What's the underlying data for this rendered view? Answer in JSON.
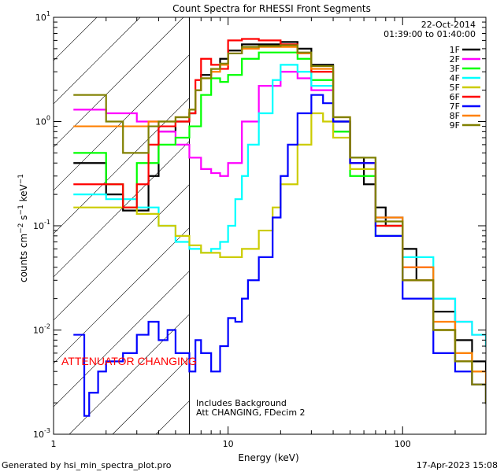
{
  "chart_data": {
    "type": "line",
    "title": "Count Spectra for RHESSI Front Segments",
    "xlabel": "Energy (keV)",
    "ylabel": "counts cm^-2 s^-1 keV^-1",
    "xscale": "log",
    "yscale": "log",
    "xlim": [
      1,
      300
    ],
    "ylim": [
      0.001,
      10
    ],
    "x_tick_labels": [
      "1",
      "10",
      "100"
    ],
    "y_tick_labels": [
      "10^-3",
      "10^-2",
      "10^-1",
      "10^0",
      "10^1"
    ],
    "date": "22-Oct-2014",
    "time_range": "01:39:00 to 01:40:00",
    "attenuator_label": "ATTENUATOR CHANGING",
    "notes": [
      "Includes Background",
      "Att CHANGING, FDecim 2"
    ],
    "attenuator_boundary_kev": 6,
    "series": [
      {
        "name": "1F",
        "color": "#000000",
        "x": [
          1.3,
          2,
          2.5,
          3,
          3.5,
          4,
          5,
          6,
          6.5,
          7,
          8,
          9,
          10,
          12,
          15,
          20,
          25,
          30,
          40,
          50,
          60,
          70,
          80,
          100,
          120,
          150,
          200,
          250,
          300
        ],
        "y": [
          0.4,
          0.2,
          0.14,
          0.14,
          0.3,
          0.8,
          1.0,
          1.2,
          2.0,
          2.8,
          3.2,
          4.0,
          4.8,
          5.5,
          5.5,
          5.8,
          5.0,
          3.5,
          1.0,
          0.45,
          0.25,
          0.15,
          0.1,
          0.06,
          0.03,
          0.015,
          0.008,
          0.005,
          0.004
        ]
      },
      {
        "name": "2F",
        "color": "#ff00ff",
        "x": [
          1.3,
          2,
          3,
          4,
          5,
          6,
          7,
          8,
          9,
          10,
          12,
          15,
          20,
          25,
          30,
          40,
          50,
          70,
          100,
          150,
          200,
          250,
          300
        ],
        "y": [
          1.3,
          1.2,
          1.0,
          0.8,
          0.6,
          0.45,
          0.35,
          0.32,
          0.3,
          0.4,
          1.0,
          2.2,
          3.0,
          2.6,
          2.0,
          0.8,
          0.4,
          0.12,
          0.04,
          0.02,
          0.012,
          0.009,
          0.007
        ]
      },
      {
        "name": "3F",
        "color": "#00ff00",
        "x": [
          1.3,
          2,
          2.5,
          3,
          4,
          5,
          6,
          7,
          8,
          9,
          10,
          12,
          15,
          20,
          25,
          30,
          40,
          50,
          70,
          100,
          150,
          200,
          250,
          300
        ],
        "y": [
          0.5,
          0.25,
          0.15,
          0.4,
          0.6,
          0.7,
          0.9,
          1.8,
          2.6,
          2.4,
          2.8,
          4.0,
          4.6,
          4.6,
          4.0,
          2.5,
          0.8,
          0.3,
          0.08,
          0.03,
          0.01,
          0.005,
          0.003,
          0.002
        ]
      },
      {
        "name": "4F",
        "color": "#00ffff",
        "x": [
          1.3,
          2,
          3,
          4,
          5,
          6,
          7,
          8,
          9,
          10,
          11,
          12,
          13,
          15,
          18,
          20,
          25,
          30,
          40,
          50,
          70,
          100,
          150,
          200,
          250,
          300
        ],
        "y": [
          0.2,
          0.18,
          0.15,
          0.1,
          0.07,
          0.06,
          0.055,
          0.06,
          0.07,
          0.1,
          0.18,
          0.3,
          0.6,
          1.2,
          2.5,
          3.5,
          3.0,
          2.2,
          1.0,
          0.45,
          0.12,
          0.05,
          0.02,
          0.012,
          0.009,
          0.007
        ]
      },
      {
        "name": "5F",
        "color": "#cccc00",
        "x": [
          1.3,
          2,
          3,
          4,
          5,
          6,
          7,
          8,
          9,
          10,
          12,
          15,
          18,
          20,
          25,
          30,
          35,
          40,
          50,
          70,
          100,
          150,
          200,
          250,
          300
        ],
        "y": [
          0.15,
          0.15,
          0.13,
          0.1,
          0.08,
          0.065,
          0.055,
          0.055,
          0.05,
          0.05,
          0.06,
          0.09,
          0.15,
          0.25,
          0.6,
          1.2,
          1.0,
          0.7,
          0.35,
          0.1,
          0.03,
          0.01,
          0.006,
          0.004,
          0.003
        ]
      },
      {
        "name": "6F",
        "color": "#ff0000",
        "x": [
          1.3,
          2,
          2.5,
          3,
          3.5,
          4,
          5,
          6,
          6.5,
          7,
          8,
          9,
          10,
          12,
          15,
          20,
          25,
          30,
          40,
          50,
          70,
          100,
          150,
          200,
          250,
          300
        ],
        "y": [
          0.25,
          0.25,
          0.15,
          0.25,
          0.6,
          0.9,
          1.0,
          1.2,
          2.5,
          4.0,
          3.5,
          3.2,
          6.0,
          6.2,
          6.0,
          5.5,
          4.5,
          3.0,
          1.0,
          0.4,
          0.1,
          0.03,
          0.01,
          0.005,
          0.003,
          0.002
        ]
      },
      {
        "name": "7F",
        "color": "#0000ff",
        "x": [
          1.3,
          1.5,
          1.6,
          1.8,
          2,
          2.5,
          3,
          3.5,
          4,
          4.5,
          5,
          6,
          6.5,
          7,
          8,
          9,
          10,
          11,
          12,
          13,
          15,
          18,
          20,
          22,
          25,
          30,
          35,
          40,
          50,
          70,
          100,
          150,
          200,
          250,
          300
        ],
        "y": [
          0.009,
          0.0015,
          0.0025,
          0.004,
          0.005,
          0.006,
          0.009,
          0.012,
          0.008,
          0.01,
          0.006,
          0.004,
          0.008,
          0.006,
          0.004,
          0.007,
          0.013,
          0.012,
          0.02,
          0.03,
          0.05,
          0.12,
          0.3,
          0.6,
          1.2,
          1.8,
          1.5,
          1.0,
          0.4,
          0.08,
          0.02,
          0.006,
          0.004,
          0.003,
          0.002
        ]
      },
      {
        "name": "8F",
        "color": "#ff8000",
        "x": [
          1.3,
          2,
          2.5,
          3,
          3.5,
          4,
          5,
          6,
          6.5,
          7,
          8,
          9,
          10,
          12,
          15,
          20,
          25,
          30,
          40,
          50,
          70,
          100,
          150,
          200,
          250,
          300
        ],
        "y": [
          0.9,
          0.9,
          0.9,
          0.9,
          1.0,
          1.0,
          1.1,
          1.3,
          2.0,
          2.6,
          3.0,
          3.5,
          4.5,
          5.0,
          5.2,
          5.2,
          4.5,
          3.2,
          1.1,
          0.45,
          0.12,
          0.04,
          0.012,
          0.006,
          0.004,
          0.003
        ]
      },
      {
        "name": "9F",
        "color": "#808000",
        "x": [
          1.3,
          2,
          2.5,
          3,
          3.5,
          4,
          5,
          6,
          6.5,
          7,
          8,
          9,
          10,
          12,
          15,
          20,
          25,
          30,
          40,
          50,
          70,
          100,
          150,
          200,
          250,
          300
        ],
        "y": [
          1.8,
          1.0,
          0.5,
          0.5,
          0.9,
          1.0,
          1.1,
          1.3,
          2.0,
          2.6,
          3.2,
          3.6,
          4.5,
          5.2,
          5.3,
          5.4,
          4.6,
          3.4,
          1.1,
          0.45,
          0.11,
          0.03,
          0.01,
          0.005,
          0.003,
          0.002
        ]
      }
    ]
  },
  "footer": {
    "left": "Generated by hsi_min_spectra_plot.pro",
    "right": "17-Apr-2023 15:08"
  }
}
